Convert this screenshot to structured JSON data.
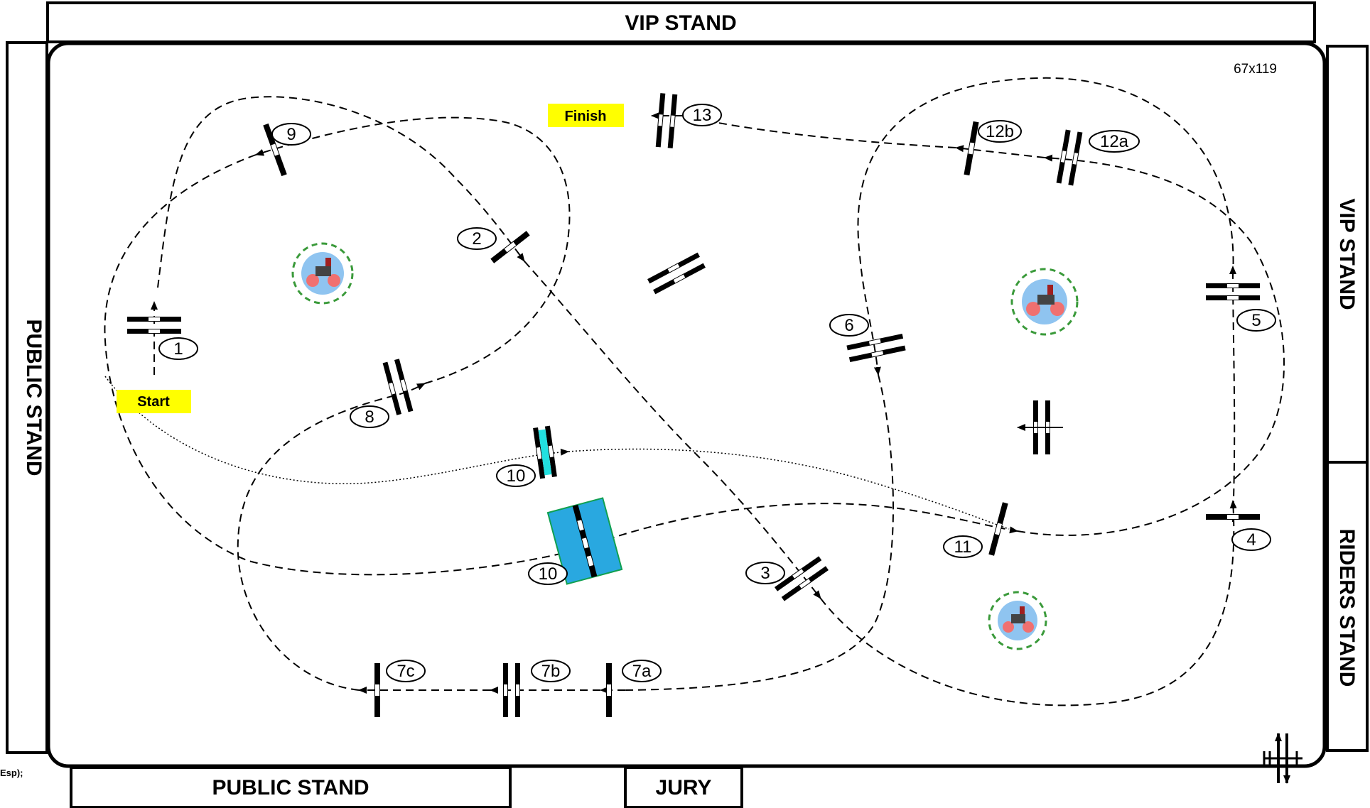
{
  "stands": {
    "top_vip": "VIP STAND",
    "right_vip": "VIP STAND",
    "right_riders": "RIDERS STAND",
    "left_public": "PUBLIC STAND",
    "bottom_public": "PUBLIC STAND",
    "bottom_jury": "JURY"
  },
  "arena_size": "67x119",
  "start_label": "Start",
  "finish_label": "Finish",
  "corner_fragment": "Esp);",
  "obstacle_numbers": [
    "1",
    "2",
    "3",
    "4",
    "5",
    "6",
    "7a",
    "7b",
    "7c",
    "8",
    "9",
    "10",
    "10",
    "11",
    "12a",
    "12b",
    "13"
  ],
  "colors": {
    "tag_yellow": "#ffff00",
    "water_jump": "#29a8e0",
    "water_jump_border": "#10a050",
    "liverpool": "#22e0e0"
  },
  "decoration_icons": [
    "carriage-wreath-icon",
    "carriage-wreath-icon",
    "carriage-wreath-icon"
  ]
}
